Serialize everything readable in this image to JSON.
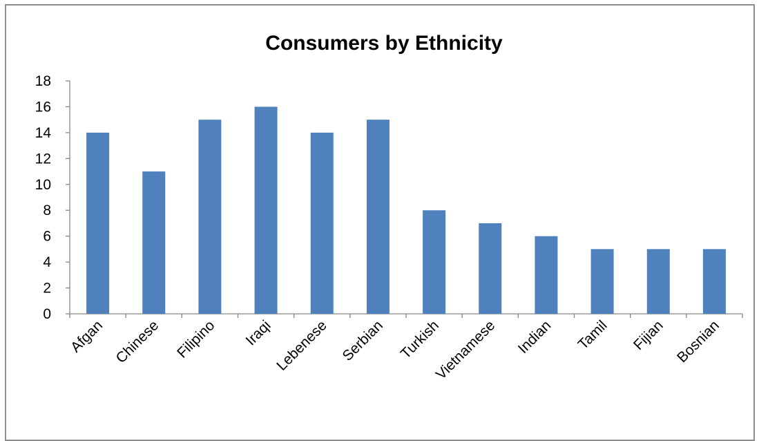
{
  "chart_data": {
    "type": "bar",
    "title": "Consumers by Ethnicity",
    "xlabel": "",
    "ylabel": "",
    "categories": [
      "Afgan",
      "Chinese",
      "Filipino",
      "Iraqi",
      "Lebenese",
      "Serbian",
      "Turkish",
      "Vietnamese",
      "Indian",
      "Tamil",
      "Fijian",
      "Bosnian"
    ],
    "values": [
      14,
      11,
      15,
      16,
      14,
      15,
      8,
      7,
      6,
      5,
      5,
      5
    ],
    "ylim": [
      0,
      18
    ],
    "yticks": [
      0,
      2,
      4,
      6,
      8,
      10,
      12,
      14,
      16,
      18
    ],
    "grid": false,
    "legend": "none",
    "bar_color": "#4f81bd"
  }
}
